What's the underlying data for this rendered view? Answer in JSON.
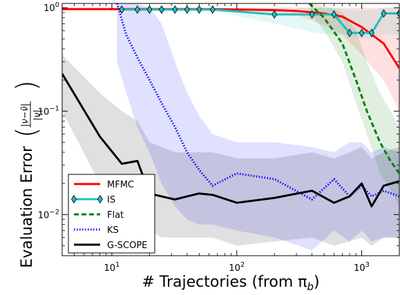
{
  "chart_data": {
    "type": "line",
    "xlabel": "# Trajectories (from πb)",
    "xlabel_main": "# Trajectories (from π",
    "xlabel_sub": "b",
    "xlabel_close": ")",
    "ylabel": "Evaluation Error",
    "ylabel_fraction": {
      "numerator": "|ν−ν̃|",
      "denominator": "|ν|"
    },
    "x_scale": "log",
    "y_scale": "log",
    "xlim": [
      4,
      2000
    ],
    "ylim": [
      0.004,
      1.1
    ],
    "x_ticks": [
      {
        "value": 10,
        "base": "10",
        "exp": "1"
      },
      {
        "value": 100,
        "base": "10",
        "exp": "2"
      },
      {
        "value": 1000,
        "base": "10",
        "exp": "3"
      }
    ],
    "y_ticks": [
      {
        "value": 0.01,
        "base": "10",
        "exp": "−2"
      },
      {
        "value": 0.1,
        "base": "10",
        "exp": "−1"
      },
      {
        "value": 1,
        "base": "10",
        "exp": "0"
      }
    ],
    "grid": false,
    "legend_position": "lower-left",
    "series": [
      {
        "name": "MFMC",
        "color": "#ff0000",
        "style": "solid",
        "marker": "none",
        "x": [
          4,
          10,
          20,
          50,
          100,
          200,
          300,
          500,
          700,
          1000,
          1500,
          2000
        ],
        "y": [
          0.97,
          0.97,
          0.97,
          0.97,
          0.96,
          0.95,
          0.93,
          0.88,
          0.82,
          0.65,
          0.45,
          0.26
        ],
        "band_upper": [
          1.0,
          1.0,
          1.0,
          1.0,
          1.0,
          1.0,
          1.0,
          1.0,
          1.0,
          1.0,
          1.0,
          1.0
        ],
        "band_lower": [
          0.95,
          0.95,
          0.95,
          0.95,
          0.94,
          0.9,
          0.85,
          0.68,
          0.55,
          0.35,
          0.2,
          0.1
        ]
      },
      {
        "name": "IS",
        "color": "#1fbfbf",
        "style": "solid",
        "marker": "diamond",
        "x": [
          12,
          16,
          20,
          25,
          32,
          40,
          50,
          64,
          200,
          400,
          600,
          800,
          1000,
          1200,
          1500,
          2000
        ],
        "y": [
          0.96,
          0.96,
          0.96,
          0.96,
          0.96,
          0.96,
          0.96,
          0.96,
          0.86,
          0.86,
          0.86,
          0.57,
          0.57,
          0.57,
          0.88,
          0.88
        ],
        "band_upper": [
          1.0,
          1.0,
          1.0,
          1.0,
          1.0,
          1.0,
          1.0,
          1.0,
          1.0,
          1.0,
          1.0,
          0.95,
          0.95,
          0.95,
          1.0,
          1.0
        ],
        "band_lower": [
          0.93,
          0.93,
          0.93,
          0.93,
          0.93,
          0.93,
          0.93,
          0.93,
          0.7,
          0.58,
          0.55,
          0.55,
          0.5,
          0.5,
          0.55,
          0.55
        ]
      },
      {
        "name": "Flat",
        "color": "#007f00",
        "style": "dashed",
        "marker": "none",
        "x": [
          380,
          500,
          700,
          900,
          1100,
          1400,
          1700,
          2000
        ],
        "y": [
          1.1,
          0.8,
          0.45,
          0.2,
          0.1,
          0.05,
          0.033,
          0.025
        ],
        "band_upper": [
          1.1,
          1.05,
          0.9,
          0.6,
          0.3,
          0.15,
          0.1,
          0.07
        ],
        "band_lower": [
          0.9,
          0.6,
          0.3,
          0.12,
          0.06,
          0.025,
          0.017,
          0.012
        ]
      },
      {
        "name": "KS",
        "color": "#0000ff",
        "style": "dotted",
        "marker": "none",
        "x": [
          11,
          13,
          16,
          20,
          25,
          32,
          40,
          50,
          64,
          100,
          200,
          400,
          600,
          800,
          1000,
          1200,
          1500,
          2000
        ],
        "y": [
          1.1,
          0.55,
          0.33,
          0.2,
          0.12,
          0.07,
          0.04,
          0.027,
          0.019,
          0.025,
          0.022,
          0.014,
          0.022,
          0.015,
          0.019,
          0.015,
          0.017,
          0.015
        ],
        "band_upper": [
          1.1,
          1.1,
          1.1,
          1.0,
          0.7,
          0.3,
          0.15,
          0.09,
          0.06,
          0.05,
          0.05,
          0.045,
          0.04,
          0.05,
          0.05,
          0.04,
          0.045,
          0.04
        ],
        "band_lower": [
          0.3,
          0.15,
          0.07,
          0.04,
          0.02,
          0.012,
          0.009,
          0.008,
          0.008,
          0.007,
          0.006,
          0.0045,
          0.007,
          0.0055,
          0.007,
          0.0055,
          0.006,
          0.006
        ]
      },
      {
        "name": "G-SCOPE",
        "color": "#000000",
        "style": "solid",
        "marker": "none",
        "x": [
          4,
          8,
          12,
          16,
          20,
          25,
          32,
          40,
          50,
          64,
          100,
          200,
          400,
          600,
          800,
          1000,
          1200,
          1500,
          2000
        ],
        "y": [
          0.23,
          0.057,
          0.031,
          0.033,
          0.016,
          0.015,
          0.014,
          0.015,
          0.016,
          0.0155,
          0.013,
          0.0145,
          0.017,
          0.013,
          0.015,
          0.02,
          0.012,
          0.019,
          0.021
        ],
        "band_upper": [
          0.35,
          0.15,
          0.1,
          0.08,
          0.05,
          0.045,
          0.04,
          0.04,
          0.04,
          0.04,
          0.035,
          0.035,
          0.04,
          0.035,
          0.04,
          0.045,
          0.035,
          0.04,
          0.045
        ],
        "band_lower": [
          0.1,
          0.02,
          0.012,
          0.01,
          0.007,
          0.006,
          0.006,
          0.006,
          0.006,
          0.006,
          0.005,
          0.0055,
          0.006,
          0.005,
          0.0055,
          0.006,
          0.005,
          0.006,
          0.006
        ]
      }
    ]
  }
}
